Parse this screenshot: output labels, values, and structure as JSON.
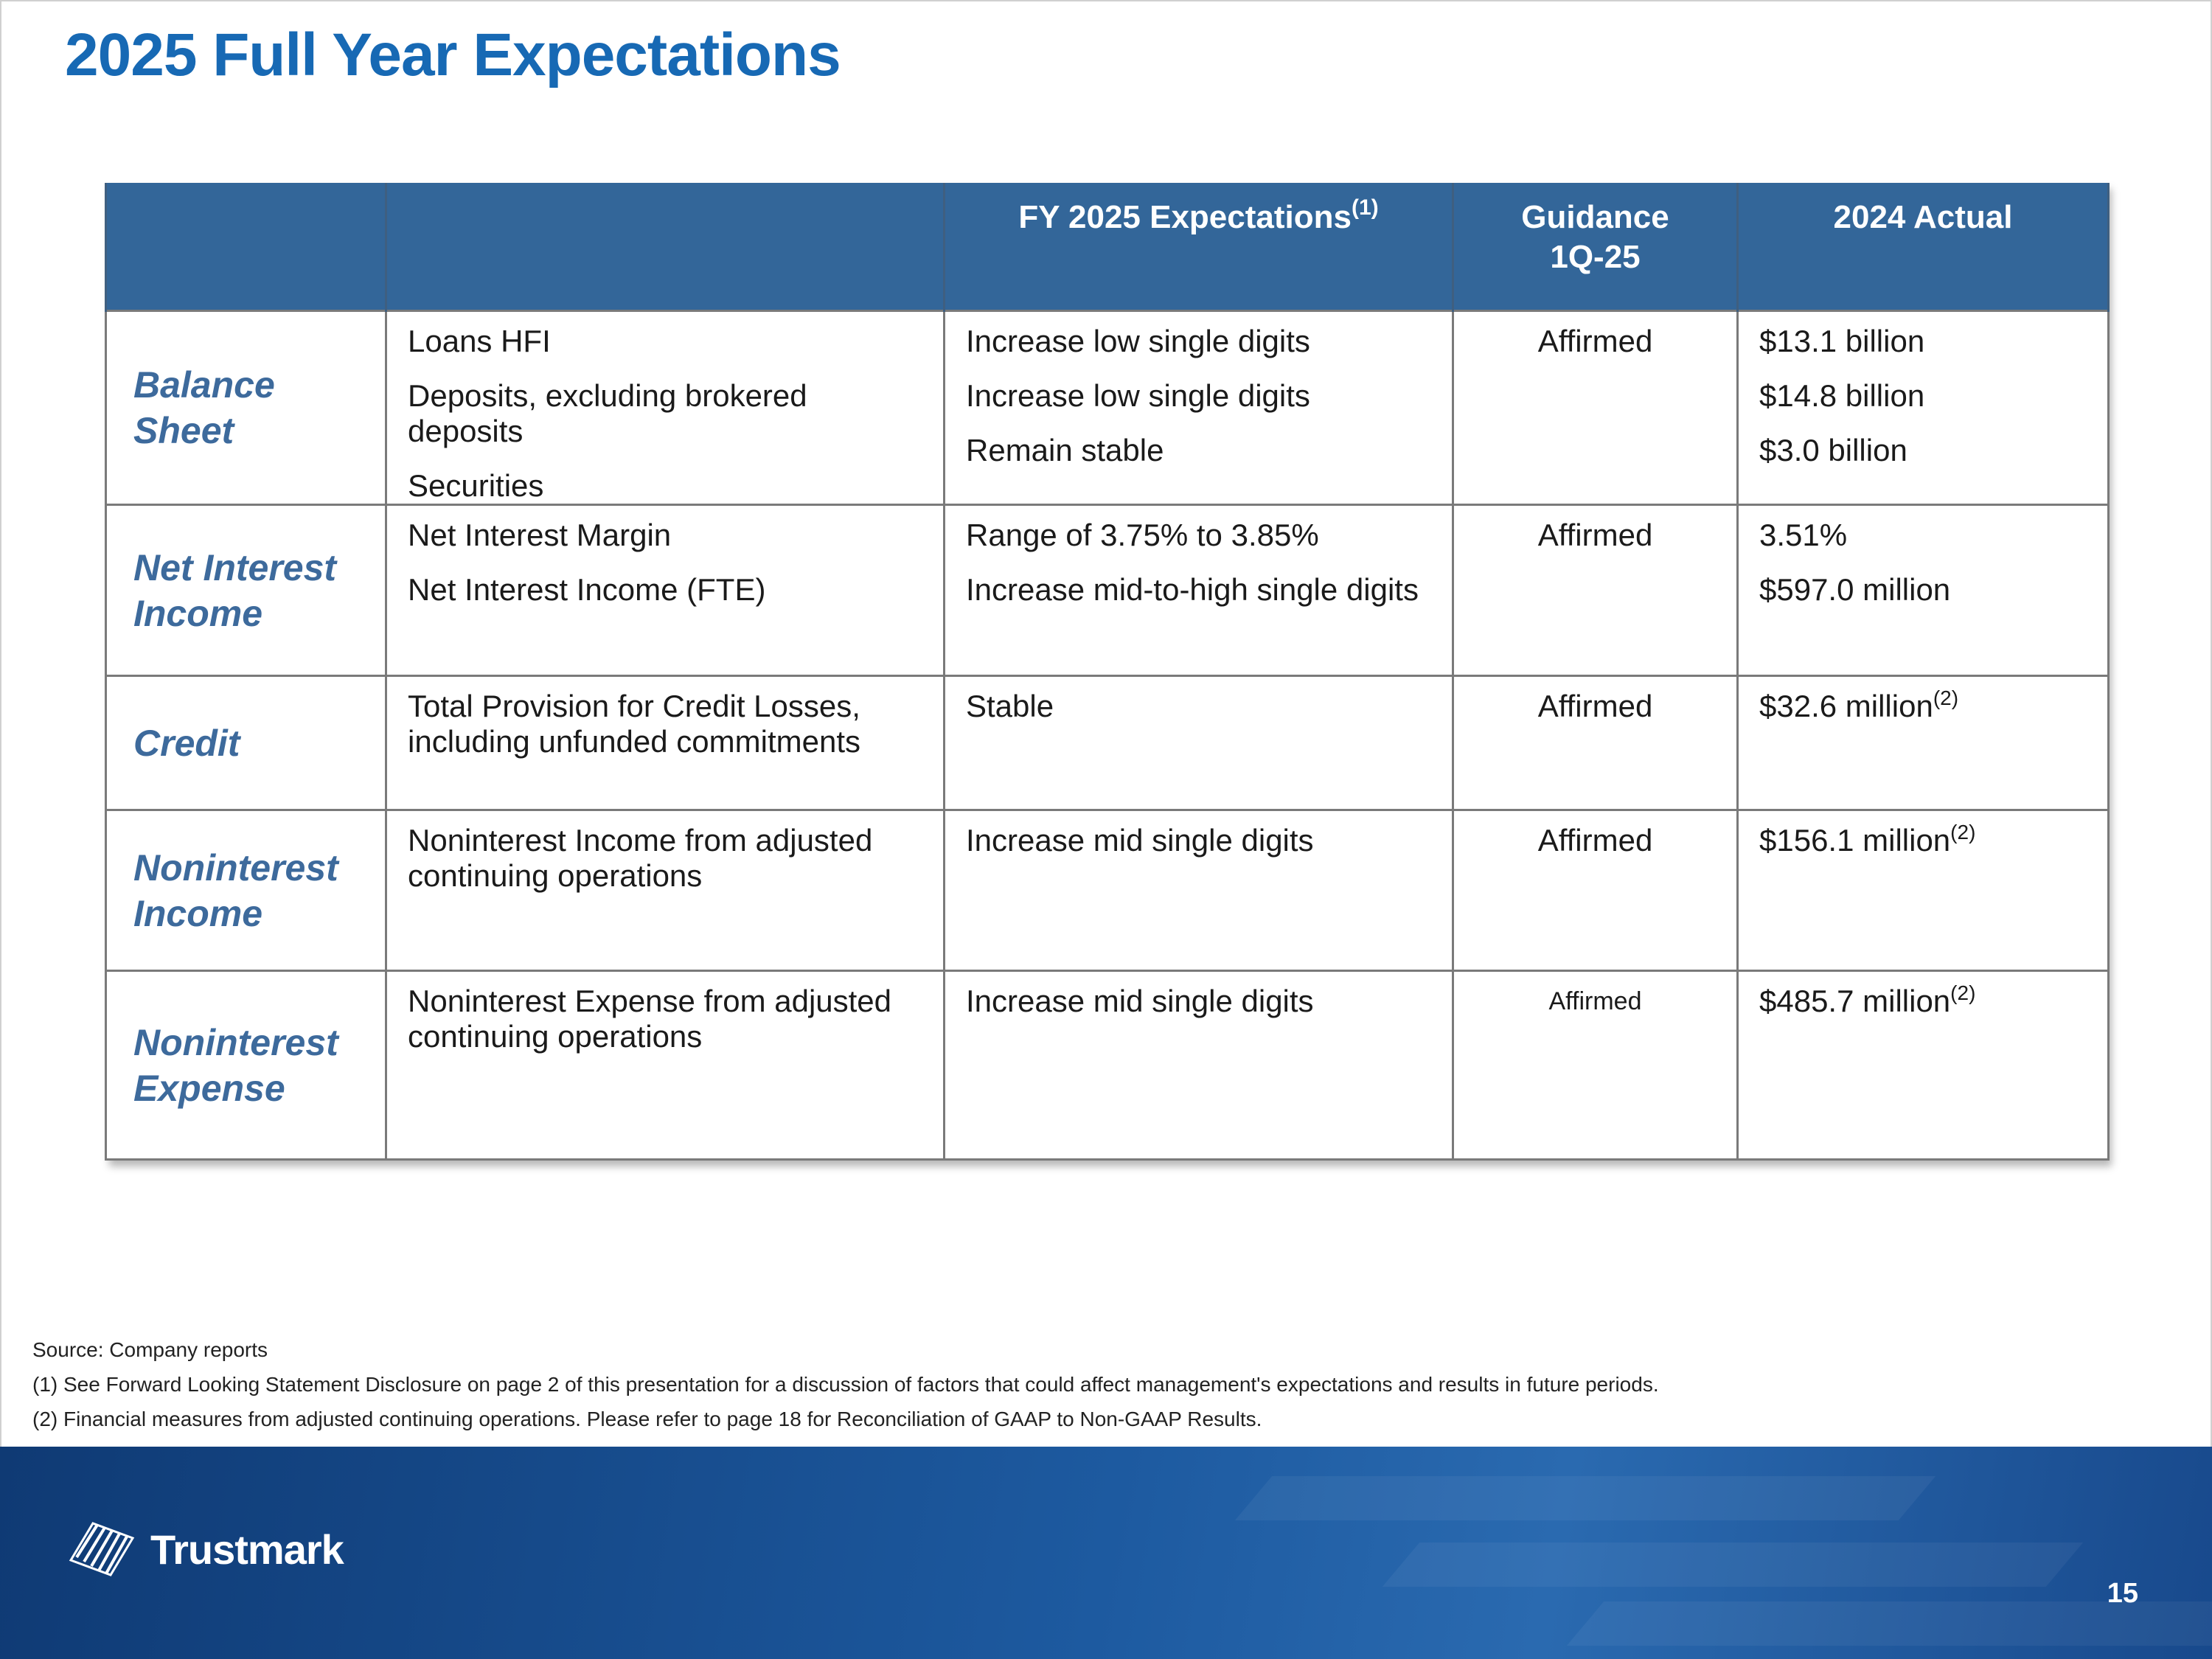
{
  "title": "2025 Full Year Expectations",
  "table": {
    "headers": {
      "col1": "",
      "col2": "",
      "fy2025": "FY 2025 Expectations",
      "fy2025_sup": "(1)",
      "guidance_line1": "Guidance",
      "guidance_line2": "1Q-25",
      "actual2024": "2024 Actual"
    },
    "rows": [
      {
        "section_line1": "Balance Sheet",
        "section_line2": "",
        "metrics": [
          "Loans HFI",
          "Deposits, excluding brokered deposits",
          "Securities"
        ],
        "expectations": [
          "Increase low single digits",
          "Increase low single digits",
          "Remain stable"
        ],
        "guidance": "Affirmed",
        "actuals": [
          "$13.1 billion",
          "$14.8 billion",
          "$3.0 billion"
        ]
      },
      {
        "section_line1": "Net Interest",
        "section_line2": "Income",
        "metrics": [
          "Net Interest Margin",
          "Net Interest Income (FTE)"
        ],
        "expectations": [
          "Range of 3.75% to 3.85%",
          "Increase mid-to-high single digits"
        ],
        "guidance": "Affirmed",
        "actuals": [
          "3.51%",
          "$597.0 million"
        ]
      },
      {
        "section_line1": "Credit",
        "section_line2": "",
        "metric_line1": "Total Provision for Credit Losses,",
        "metric_line2": "including unfunded commitments",
        "expectation": "Stable",
        "guidance": "Affirmed",
        "actual": "$32.6 million",
        "actual_sup": "(2)"
      },
      {
        "section_line1": "Noninterest",
        "section_line2": "Income",
        "metric_line1": "Noninterest Income from adjusted",
        "metric_line2": "continuing operations",
        "expectation": "Increase mid single digits",
        "guidance": "Affirmed",
        "actual": "$156.1 million",
        "actual_sup": "(2)"
      },
      {
        "section_line1": "Noninterest",
        "section_line2": "Expense",
        "metric_line1": "Noninterest Expense from adjusted",
        "metric_line2": "continuing operations",
        "expectation": "Increase mid single digits",
        "guidance": "Affirmed",
        "actual": "$485.7 million",
        "actual_sup": "(2)"
      }
    ]
  },
  "footnotes": {
    "source": "Source: Company reports",
    "note1": "(1) See Forward Looking Statement Disclosure on page 2 of this presentation for a discussion of factors that could affect management's expectations and results in future periods.",
    "note2": "(2) Financial measures from adjusted continuing operations. Please refer to page 18 for Reconciliation of GAAP to Non-GAAP Results."
  },
  "footer": {
    "logo_text": "Trustmark",
    "page_number": "15"
  },
  "colors": {
    "title": "#1769b4",
    "header_bg": "#336699",
    "section_text": "#3d6a9c",
    "footer_bg": "#1d5aa0"
  }
}
